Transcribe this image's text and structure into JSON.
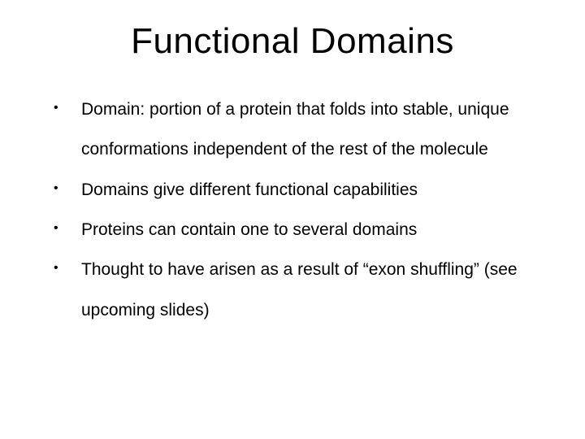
{
  "slide": {
    "title": "Functional Domains",
    "title_fontsize": 44,
    "body_fontsize": 21,
    "line_height": 2.35,
    "background_color": "#ffffff",
    "text_color": "#000000",
    "bullets": [
      "Domain: portion of a protein that folds into stable, unique conformations independent of the rest of the molecule",
      "Domains give different functional capabilities",
      "Proteins can contain one to several domains",
      "Thought to have arisen as a result of “exon shuffling” (see upcoming slides)"
    ]
  }
}
